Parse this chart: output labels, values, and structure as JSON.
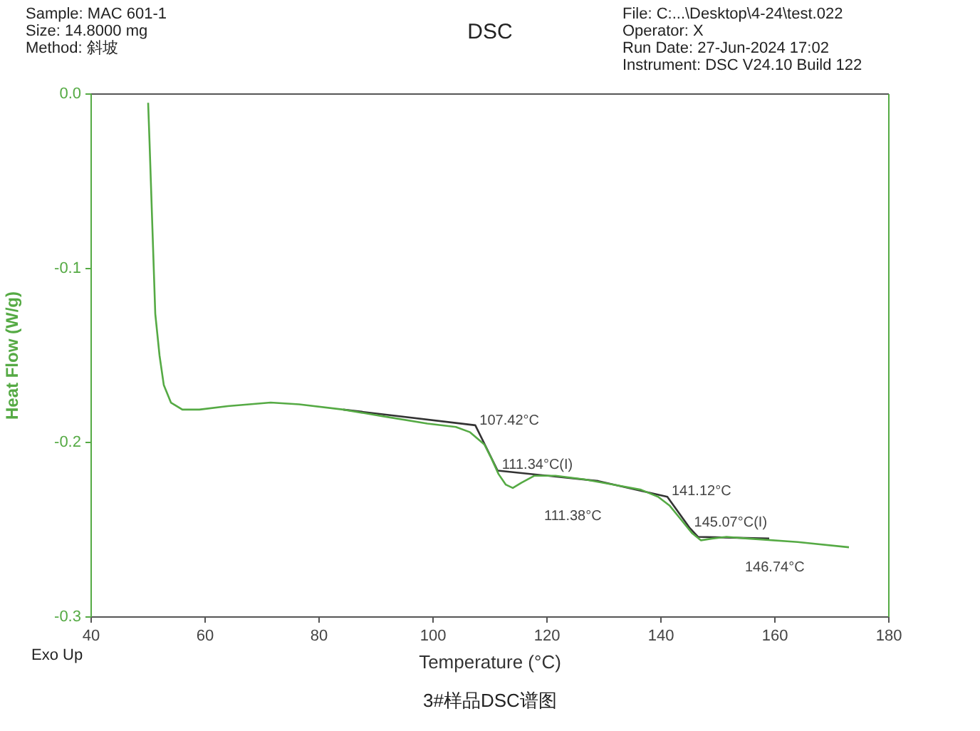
{
  "chart_data": {
    "type": "line",
    "title": "DSC",
    "xlabel": "Temperature (°C)",
    "ylabel": "Heat Flow (W/g)",
    "xlim": [
      40,
      180
    ],
    "xticks": [
      40,
      60,
      80,
      100,
      120,
      140,
      160,
      180
    ],
    "ylim": [
      -0.3,
      0.0
    ],
    "yticks": [
      {
        "value": 0.0,
        "label": "0.0"
      },
      -0.1,
      -0.2,
      -0.3
    ],
    "grid": false,
    "legend": false,
    "marker": "none",
    "line_style": "solid",
    "series": [
      {
        "color": "#55aa44",
        "x": [
          50,
          50.25,
          50.75,
          51.25,
          52,
          52.75,
          54,
          56,
          59,
          64,
          71.5,
          76.5,
          84.25,
          91.5,
          99,
          104,
          106.5,
          109,
          110.25,
          111.5,
          112.75,
          114,
          115.5,
          117.75,
          121.5,
          126.5,
          131.5,
          136.5,
          139.5,
          141.5,
          143.5,
          145.5,
          147,
          149,
          151.5,
          155.25,
          164,
          173
        ],
        "values": [
          -0.005,
          -0.028,
          -0.077,
          -0.126,
          -0.15,
          -0.167,
          -0.177,
          -0.181,
          -0.181,
          -0.179,
          -0.177,
          -0.178,
          -0.181,
          -0.185,
          -0.189,
          -0.191,
          -0.194,
          -0.201,
          -0.209,
          -0.218,
          -0.224,
          -0.226,
          -0.223,
          -0.219,
          -0.219,
          -0.221,
          -0.224,
          -0.227,
          -0.231,
          -0.236,
          -0.244,
          -0.252,
          -0.256,
          -0.255,
          -0.254,
          -0.255,
          -0.257,
          -0.26
        ]
      },
      {
        "color": "#333333",
        "x": [
          84.25,
          107.42,
          111.34,
          129,
          141.12,
          145.07,
          146.5,
          159
        ],
        "values": [
          -0.181,
          -0.19,
          -0.216,
          -0.222,
          -0.231,
          -0.249,
          -0.254,
          -0.255
        ]
      }
    ],
    "annotations": [
      "Sample: MAC 601-1",
      "Size:  14.8000 mg",
      "Method: 斜坡",
      "File: C:...\\Desktop\\4-24\\test.022",
      "Operator: X",
      "Run Date: 27-Jun-2024 17:02",
      "Instrument: DSC V24.10 Build 122",
      "Exo Up",
      "3#样品DSC谱图",
      {
        "text": "107.42°C",
        "x": 107.42,
        "y": -0.1905
      },
      {
        "text": "111.34°C(I)",
        "x": 111.34,
        "y": -0.216
      },
      "111.38°C",
      {
        "text": "141.12°C",
        "x": 141.12,
        "y": -0.231
      },
      {
        "text": "145.07°C(I)",
        "x": 145.07,
        "y": -0.249
      },
      "146.74°C"
    ]
  }
}
